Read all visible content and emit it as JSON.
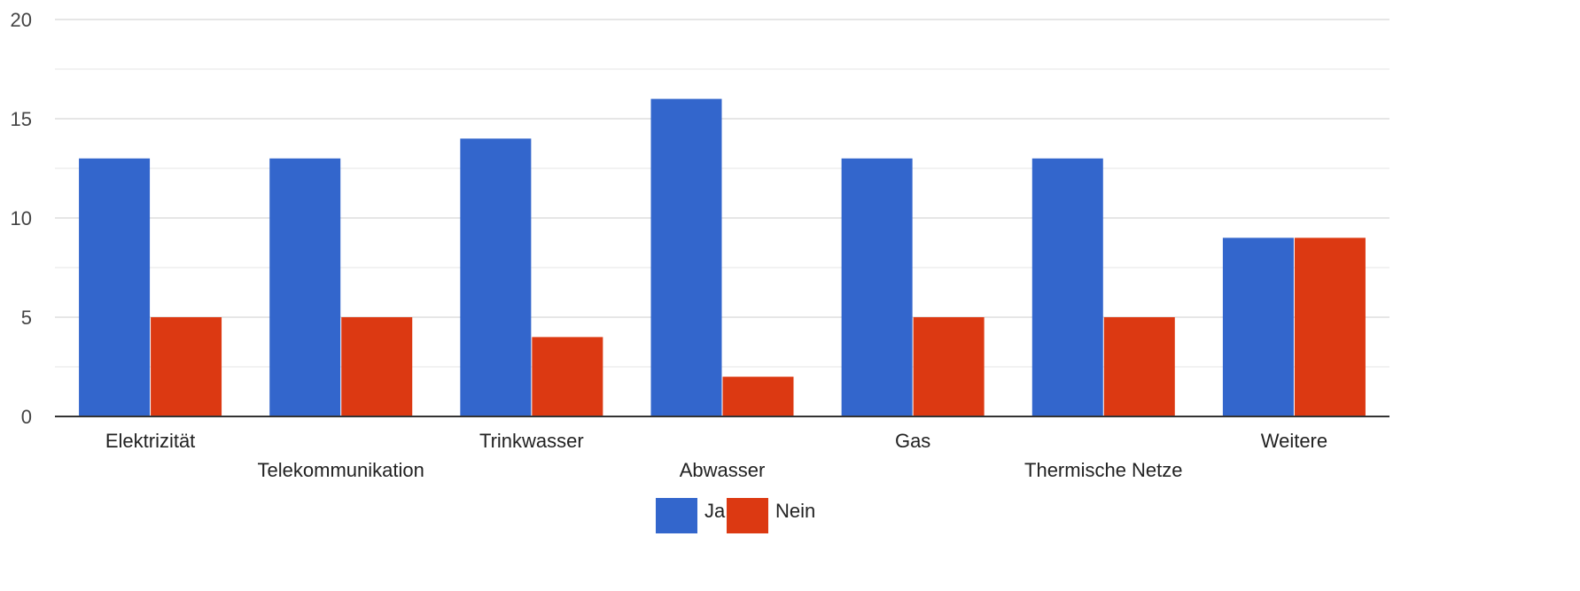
{
  "chart_data": {
    "type": "bar",
    "categories": [
      "Elektrizität",
      "Telekommunikation",
      "Trinkwasser",
      "Abwasser",
      "Gas",
      "Thermische Netze",
      "Weitere"
    ],
    "series": [
      {
        "name": "Ja",
        "values": [
          13,
          13,
          14,
          16,
          13,
          13,
          9
        ],
        "color": "#3366cc"
      },
      {
        "name": "Nein",
        "values": [
          5,
          5,
          4,
          2,
          5,
          5,
          9
        ],
        "color": "#dc3912"
      }
    ],
    "yticks": [
      "0",
      "5",
      "10",
      "15",
      "20"
    ],
    "ylim": [
      0,
      20
    ],
    "grid": true,
    "legend_position": "bottom-center",
    "xlabel": "",
    "ylabel": ""
  }
}
